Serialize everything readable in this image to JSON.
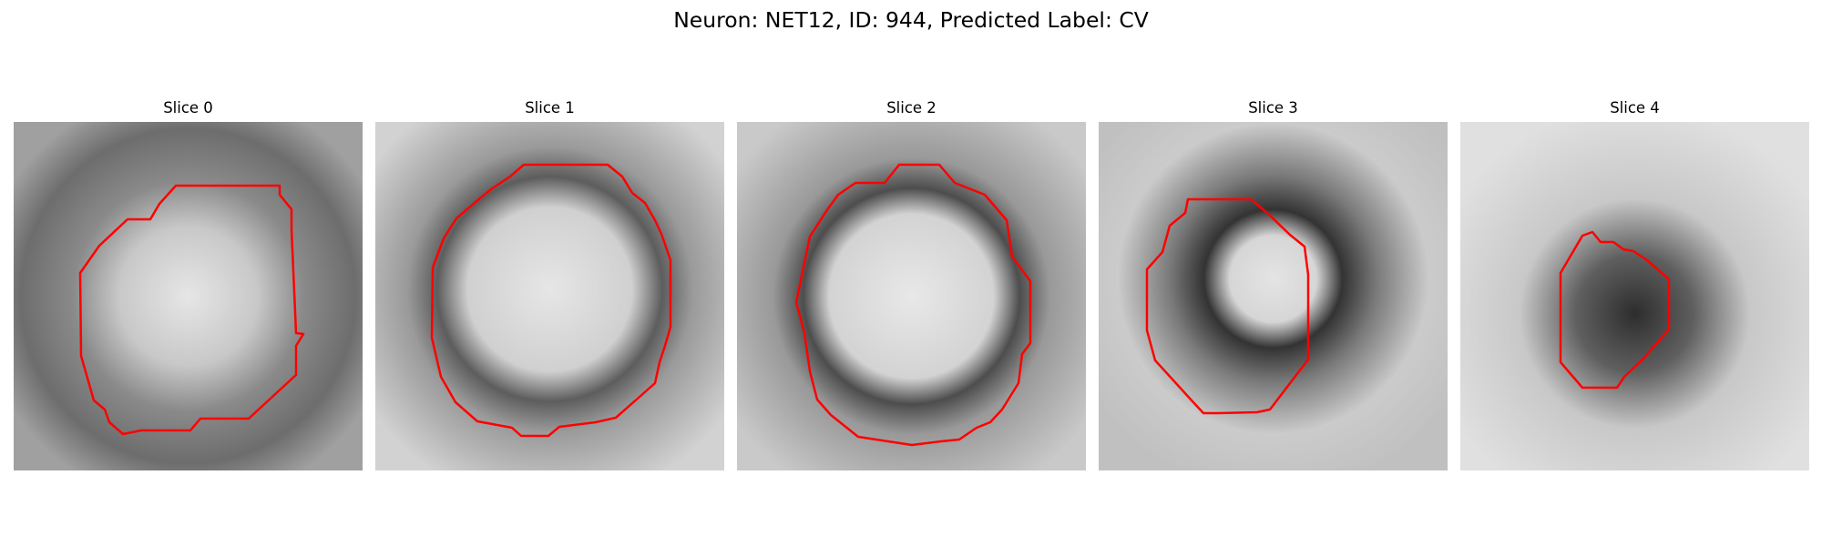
{
  "figure": {
    "title": "Neuron: NET12, ID: 944, Predicted Label: CV",
    "colors": {
      "contour": "#ff0000",
      "background": "#ffffff"
    },
    "panels": [
      {
        "title": "Slice 0"
      },
      {
        "title": "Slice 1"
      },
      {
        "title": "Slice 2"
      },
      {
        "title": "Slice 3"
      },
      {
        "title": "Slice 4"
      }
    ]
  }
}
